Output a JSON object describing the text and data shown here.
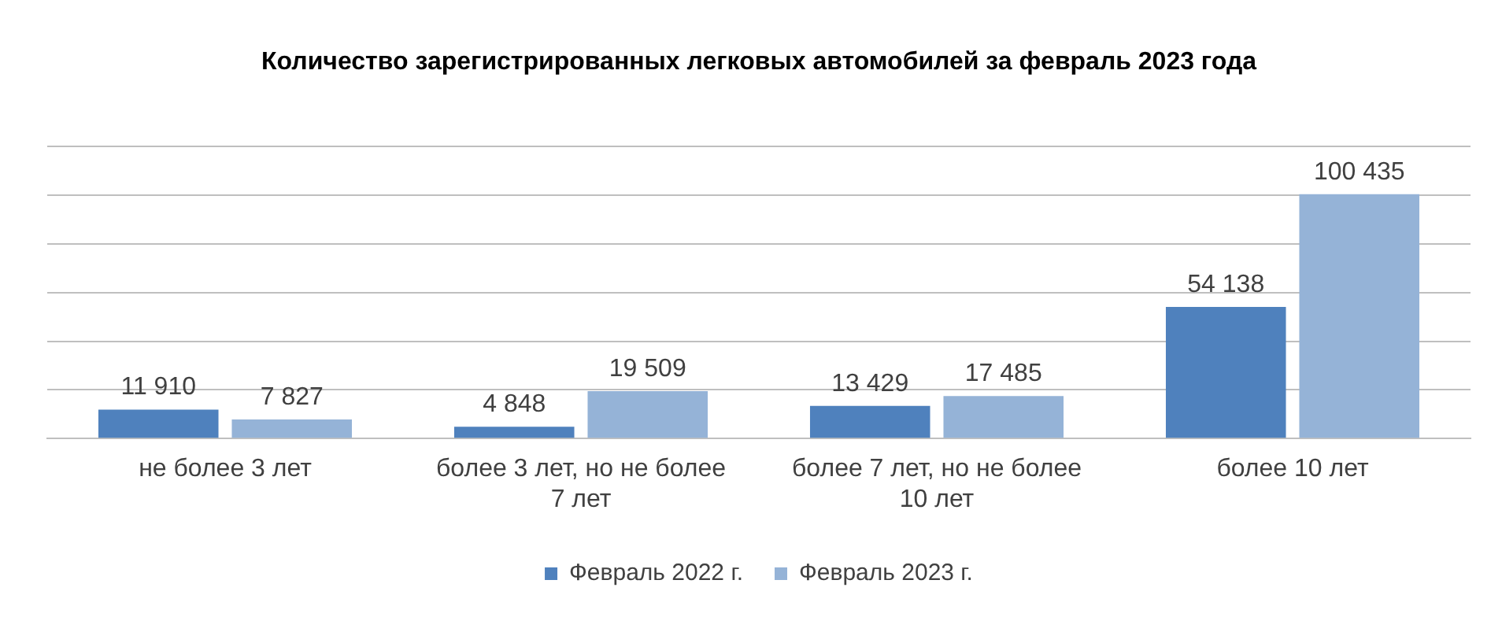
{
  "chart_data": {
    "type": "bar",
    "title": "Количество зарегистрированных легковых автомобилей за февраль 2023 года",
    "categories": [
      "не более 3 лет",
      "более 3 лет, но не более 7 лет",
      "более 7 лет, но не более 10 лет",
      "более 10 лет"
    ],
    "series": [
      {
        "name": "Февраль 2022 г.",
        "color": "#4f81bd",
        "values": [
          11910,
          4848,
          13429,
          54138
        ]
      },
      {
        "name": "Февраль 2023 г.",
        "color": "#95b3d7",
        "values": [
          7827,
          19509,
          17485,
          100435
        ]
      }
    ],
    "ylim": [
      0,
      120000
    ],
    "yticks": [
      {
        "value": 0,
        "label": null
      },
      {
        "value": 20000,
        "label": null
      },
      {
        "value": 40000,
        "label": null
      },
      {
        "value": 60000,
        "label": null
      },
      {
        "value": 80000,
        "label": null
      },
      {
        "value": 100000,
        "label": null
      },
      {
        "value": 120000,
        "label": null
      }
    ],
    "tick_labels": "x",
    "grid": "y",
    "legend": "bottom",
    "data_labels": true
  }
}
